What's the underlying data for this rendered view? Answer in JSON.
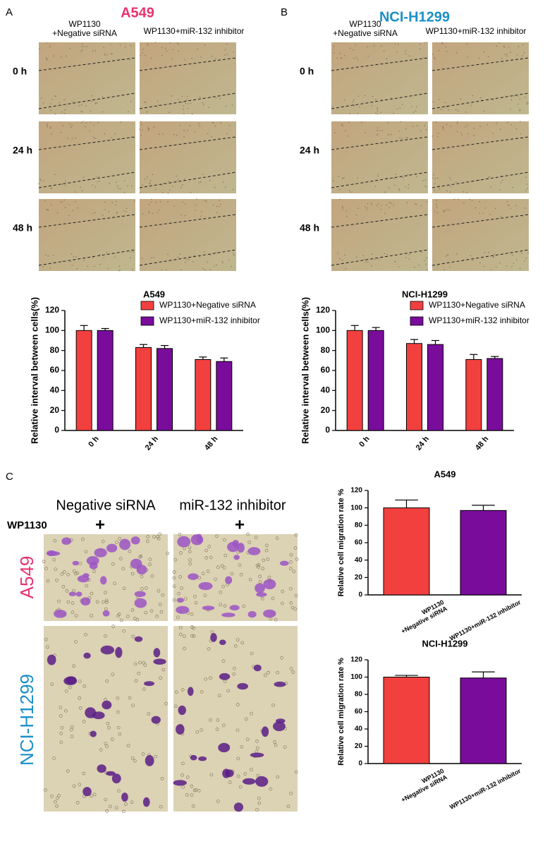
{
  "panel_a": {
    "label": "A",
    "title": "A549",
    "columns": [
      "WP1130\n+Negative siRNA",
      "WP1130+miR-132 inhibitor"
    ],
    "rows": [
      "0 h",
      "24 h",
      "48 h"
    ]
  },
  "panel_b": {
    "label": "B",
    "title": "NCI-H1299",
    "columns": [
      "WP1130\n+Negative siRNA",
      "WP1130+miR-132 inhibitor"
    ],
    "rows": [
      "0 h",
      "24 h",
      "48 h"
    ]
  },
  "panel_c": {
    "label": "C",
    "columns": [
      "Negative siRNA",
      "miR-132 inhibitor"
    ],
    "treatment": "WP1130",
    "treatment_marks": [
      "+",
      "+"
    ],
    "rows": [
      "A549",
      "NCI-H1299"
    ]
  },
  "chart_data": [
    {
      "type": "bar",
      "title": "A549",
      "y_label": "Relative interval between cells(%)",
      "categories": [
        "0 h",
        "24 h",
        "48 h"
      ],
      "series": [
        {
          "name": "WP1130+Negative siRNA",
          "color": "#f2403f",
          "values": [
            100,
            83,
            71
          ],
          "errors": [
            5,
            3,
            2.5
          ]
        },
        {
          "name": "WP1130+miR-132 inhibitor",
          "color": "#7a0c9c",
          "values": [
            100,
            82,
            69
          ],
          "errors": [
            2,
            3,
            3.5
          ]
        }
      ],
      "ylim": [
        0,
        120
      ],
      "yticks": [
        0,
        20,
        40,
        60,
        80,
        100,
        120
      ],
      "legend": "top-right"
    },
    {
      "type": "bar",
      "title": "NCI-H1299",
      "y_label": "Relative interval between cells(%)",
      "categories": [
        "0 h",
        "24 h",
        "48 h"
      ],
      "series": [
        {
          "name": "WP1130+Negative siRNA",
          "color": "#f2403f",
          "values": [
            100,
            87,
            71
          ],
          "errors": [
            5,
            4,
            5
          ]
        },
        {
          "name": "WP1130+miR-132 inhibitor",
          "color": "#7a0c9c",
          "values": [
            100,
            86,
            72
          ],
          "errors": [
            3,
            4,
            2
          ]
        }
      ],
      "ylim": [
        0,
        120
      ],
      "yticks": [
        0,
        20,
        40,
        60,
        80,
        100,
        120
      ],
      "legend": "top-right"
    },
    {
      "type": "bar",
      "title": "A549",
      "y_label": "Relative cell migration rate %",
      "categories": [
        "WP1130\n+Negative siRNA",
        "WP1130+miR-132 inhibitor"
      ],
      "series": [
        {
          "colors": [
            "#f2403f",
            "#7a0c9c"
          ],
          "values": [
            100,
            97
          ],
          "errors": [
            9,
            6
          ]
        }
      ],
      "ylim": [
        0,
        120
      ],
      "yticks": [
        0,
        20,
        40,
        60,
        80,
        100,
        120
      ]
    },
    {
      "type": "bar",
      "title": "NCI-H1299",
      "y_label": "Relative cell migration rate %",
      "categories": [
        "WP1130\n+Negative siRNA",
        "WP1130+miR-132 inhibitor"
      ],
      "series": [
        {
          "colors": [
            "#f2403f",
            "#7a0c9c"
          ],
          "values": [
            100,
            99
          ],
          "errors": [
            2,
            7
          ]
        }
      ],
      "ylim": [
        0,
        120
      ],
      "yticks": [
        0,
        20,
        40,
        60,
        80,
        100,
        120
      ]
    }
  ]
}
